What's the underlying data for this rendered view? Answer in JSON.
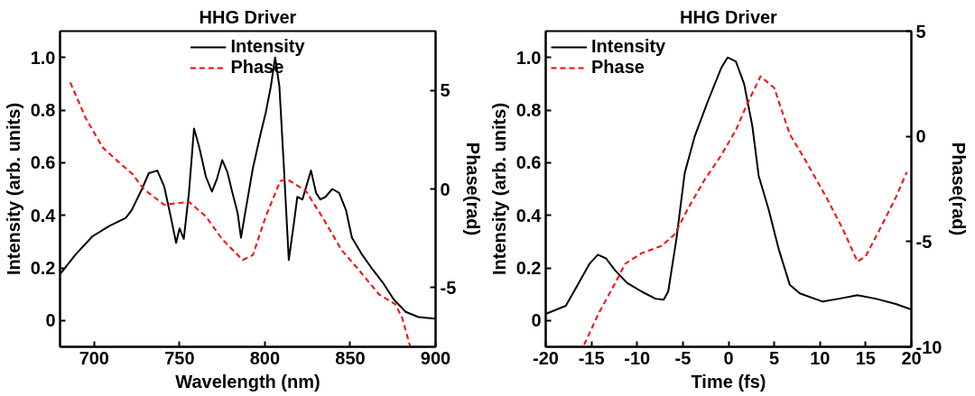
{
  "chart_data": [
    {
      "type": "line",
      "title": "HHG Driver",
      "xlabel": "Wavelength (nm)",
      "ylabel": "Intensity (arb. units)",
      "y2label": "Phase(rad)",
      "xlim": [
        680,
        900
      ],
      "xticks": [
        700,
        750,
        800,
        850,
        900
      ],
      "ylim": [
        -0.1,
        1.1
      ],
      "yticks": [
        0,
        0.2,
        0.4,
        0.6,
        0.8,
        {
          "value": 1,
          "label": "1.0"
        }
      ],
      "y2lim": [
        -8,
        8
      ],
      "y2ticks": [
        -5,
        0,
        5
      ],
      "legend": "top",
      "series": [
        {
          "name": "Intensity",
          "color": "#000000",
          "line_style": "solid",
          "x": [
            680.5,
            689,
            699,
            709,
            718.5,
            722,
            728,
            732,
            737,
            741,
            745,
            748,
            750,
            752.5,
            755.5,
            758.5,
            761.5,
            765.5,
            769,
            772,
            775,
            778,
            781,
            784,
            786,
            789,
            793,
            797.5,
            800.5,
            803.5,
            806,
            808.5,
            811,
            814,
            817,
            819,
            822,
            827,
            830,
            832.5,
            835.5,
            839.5,
            843.5,
            847.5,
            851,
            857,
            863,
            869,
            875.5,
            882.5,
            890,
            899.5
          ],
          "values": [
            0.18,
            0.25,
            0.32,
            0.36,
            0.39,
            0.42,
            0.5,
            0.56,
            0.57,
            0.51,
            0.39,
            0.295,
            0.35,
            0.31,
            0.485,
            0.73,
            0.66,
            0.545,
            0.49,
            0.54,
            0.61,
            0.565,
            0.485,
            0.41,
            0.315,
            0.43,
            0.58,
            0.71,
            0.79,
            0.89,
            1.0,
            0.89,
            0.6,
            0.23,
            0.37,
            0.47,
            0.46,
            0.57,
            0.485,
            0.46,
            0.47,
            0.5,
            0.485,
            0.42,
            0.315,
            0.25,
            0.195,
            0.145,
            0.08,
            0.033,
            0.013,
            0.007
          ]
        },
        {
          "name": "Phase",
          "color": "#ff0000",
          "line_style": "dashed",
          "axis": "y2",
          "x": [
            686,
            695,
            705,
            714.5,
            722.5,
            729,
            741,
            755.5,
            765.5,
            775,
            787,
            793,
            800.5,
            809,
            813,
            824,
            833.5,
            845,
            855,
            867,
            876.5,
            880.5,
            885
          ],
          "values": [
            5.4,
            3.6,
            2.1,
            1.35,
            0.75,
            0,
            -0.8,
            -0.65,
            -1.4,
            -2.55,
            -3.6,
            -3.35,
            -1.4,
            0.4,
            0.5,
            -0.1,
            -1.4,
            -3.1,
            -4.1,
            -5.35,
            -5.85,
            -6.55,
            -7.95
          ]
        }
      ]
    },
    {
      "type": "line",
      "title": "HHG Driver",
      "xlabel": "Time (fs)",
      "ylabel": "Intensity (arb. units)",
      "y2label": "Phase(rad)",
      "xlim": [
        -20,
        20
      ],
      "xticks": [
        -20,
        -15,
        -10,
        -5,
        0,
        5,
        10,
        15,
        20
      ],
      "ylim": [
        -0.1,
        1.1
      ],
      "yticks": [
        0,
        0.2,
        0.4,
        0.6,
        0.8,
        {
          "value": 1,
          "label": "1.0"
        }
      ],
      "y2lim": [
        -10,
        5
      ],
      "y2ticks": [
        -10,
        -5,
        0,
        5
      ],
      "legend": "top left",
      "series": [
        {
          "name": "Intensity",
          "color": "#000000",
          "line_style": "solid",
          "x": [
            -20,
            -17.8,
            -16.5,
            -15.2,
            -14.3,
            -13.4,
            -12.4,
            -11.1,
            -9.5,
            -8,
            -7.1,
            -6.6,
            -5.7,
            -4.8,
            -3.7,
            -2.3,
            -0.8,
            -0.1,
            0.8,
            1.7,
            2.6,
            3.3,
            4.4,
            5.5,
            6.7,
            7.8,
            10.3,
            12.1,
            14.1,
            16.1,
            18.3,
            19.9
          ],
          "values": [
            0.025,
            0.056,
            0.136,
            0.216,
            0.25,
            0.236,
            0.19,
            0.143,
            0.11,
            0.083,
            0.079,
            0.11,
            0.31,
            0.56,
            0.7,
            0.83,
            0.96,
            1.0,
            0.985,
            0.9,
            0.74,
            0.55,
            0.42,
            0.27,
            0.136,
            0.103,
            0.072,
            0.083,
            0.096,
            0.083,
            0.063,
            0.043
          ]
        },
        {
          "name": "Phase",
          "color": "#ff0000",
          "line_style": "dashed",
          "axis": "y2",
          "x": [
            -15.8,
            -14.2,
            -12.5,
            -11.3,
            -9.5,
            -7.3,
            -5.9,
            -4.4,
            -2.6,
            -0.8,
            0.8,
            2.1,
            3.5,
            5,
            6.7,
            8.5,
            10.7,
            12.5,
            14.1,
            15,
            16.8,
            18.3,
            19.5
          ],
          "values": [
            -9.9,
            -8.4,
            -7.05,
            -6.05,
            -5.55,
            -5.2,
            -4.65,
            -3.4,
            -2.05,
            -0.9,
            0.3,
            1.6,
            2.85,
            2.3,
            0.1,
            -1.2,
            -2.9,
            -4.4,
            -5.95,
            -5.7,
            -4.2,
            -2.9,
            -1.7
          ]
        }
      ]
    }
  ]
}
